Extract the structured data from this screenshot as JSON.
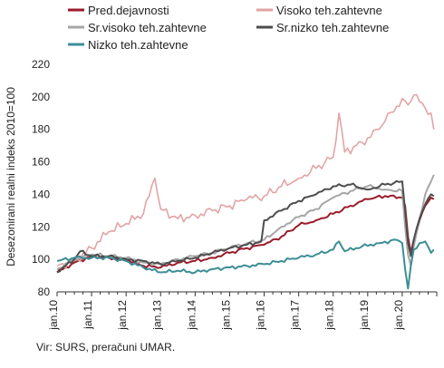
{
  "chart_data": {
    "type": "line",
    "ylabel": "Desezonirani realni indeks 2010=100",
    "ylim": [
      80,
      220
    ],
    "yticks": [
      80,
      100,
      120,
      140,
      160,
      180,
      200,
      220
    ],
    "xticks": [
      "jan.10",
      "jan.11",
      "jan.12",
      "jan.13",
      "jan.14",
      "jan.15",
      "jan.16",
      "jan.17",
      "jan.18",
      "jan.19",
      "jan.20"
    ],
    "xlim_months": [
      0,
      132
    ],
    "grid": false,
    "legend_position": "top",
    "source": "Vir: SURS, preračuni UMAR.",
    "series": [
      {
        "name": "Pred.dejavnosti",
        "color": "#9b1b2b",
        "anchors": [
          [
            0,
            92
          ],
          [
            6,
            98
          ],
          [
            12,
            102
          ],
          [
            18,
            101
          ],
          [
            24,
            100
          ],
          [
            30,
            96
          ],
          [
            36,
            95
          ],
          [
            42,
            98
          ],
          [
            48,
            99
          ],
          [
            54,
            101
          ],
          [
            60,
            104
          ],
          [
            66,
            107
          ],
          [
            72,
            109
          ],
          [
            78,
            114
          ],
          [
            84,
            121
          ],
          [
            90,
            124
          ],
          [
            96,
            128
          ],
          [
            102,
            133
          ],
          [
            108,
            137
          ],
          [
            114,
            139
          ],
          [
            120,
            138
          ],
          [
            121,
            133
          ],
          [
            122,
            114
          ],
          [
            123,
            104
          ],
          [
            124,
            112
          ],
          [
            126,
            124
          ],
          [
            128,
            133
          ],
          [
            130,
            138
          ],
          [
            131,
            137
          ]
        ]
      },
      {
        "name": "Visoko teh.zahtevne",
        "color": "#e2a4a5",
        "anchors": [
          [
            0,
            96
          ],
          [
            6,
            99
          ],
          [
            12,
            107
          ],
          [
            18,
            117
          ],
          [
            24,
            122
          ],
          [
            30,
            128
          ],
          [
            34,
            150
          ],
          [
            36,
            131
          ],
          [
            42,
            125
          ],
          [
            48,
            127
          ],
          [
            54,
            130
          ],
          [
            60,
            133
          ],
          [
            66,
            137
          ],
          [
            72,
            139
          ],
          [
            78,
            145
          ],
          [
            84,
            150
          ],
          [
            90,
            156
          ],
          [
            96,
            163
          ],
          [
            98,
            190
          ],
          [
            100,
            166
          ],
          [
            106,
            172
          ],
          [
            112,
            180
          ],
          [
            114,
            185
          ],
          [
            118,
            194
          ],
          [
            120,
            199
          ],
          [
            122,
            195
          ],
          [
            124,
            201
          ],
          [
            126,
            197
          ],
          [
            128,
            193
          ],
          [
            130,
            190
          ],
          [
            131,
            180
          ]
        ]
      },
      {
        "name": "Sr.visoko teh.zahtevne",
        "color": "#a6a6a6",
        "anchors": [
          [
            0,
            94
          ],
          [
            6,
            100
          ],
          [
            12,
            103
          ],
          [
            18,
            102
          ],
          [
            24,
            101
          ],
          [
            30,
            98
          ],
          [
            36,
            97
          ],
          [
            42,
            100
          ],
          [
            48,
            102
          ],
          [
            54,
            104
          ],
          [
            60,
            107
          ],
          [
            66,
            110
          ],
          [
            72,
            112
          ],
          [
            78,
            120
          ],
          [
            84,
            126
          ],
          [
            90,
            131
          ],
          [
            96,
            138
          ],
          [
            102,
            142
          ],
          [
            108,
            145
          ],
          [
            114,
            143
          ],
          [
            120,
            142
          ],
          [
            121,
            120
          ],
          [
            122,
            103
          ],
          [
            123,
            96
          ],
          [
            124,
            108
          ],
          [
            126,
            125
          ],
          [
            128,
            140
          ],
          [
            130,
            148
          ],
          [
            131,
            152
          ]
        ]
      },
      {
        "name": "Sr.nizko teh.zahtevne",
        "color": "#4d4d4d",
        "anchors": [
          [
            0,
            92
          ],
          [
            6,
            100
          ],
          [
            8,
            105
          ],
          [
            12,
            102
          ],
          [
            18,
            102
          ],
          [
            24,
            100
          ],
          [
            30,
            99
          ],
          [
            36,
            97
          ],
          [
            42,
            99
          ],
          [
            48,
            101
          ],
          [
            54,
            104
          ],
          [
            60,
            107
          ],
          [
            66,
            109
          ],
          [
            71,
            111
          ],
          [
            72,
            124
          ],
          [
            78,
            130
          ],
          [
            84,
            136
          ],
          [
            90,
            140
          ],
          [
            96,
            145
          ],
          [
            102,
            146
          ],
          [
            108,
            143
          ],
          [
            114,
            146
          ],
          [
            120,
            148
          ],
          [
            121,
            130
          ],
          [
            122,
            110
          ],
          [
            123,
            102
          ],
          [
            124,
            112
          ],
          [
            126,
            125
          ],
          [
            128,
            134
          ],
          [
            130,
            140
          ],
          [
            131,
            139
          ]
        ]
      },
      {
        "name": "Nizko teh.zahtevne",
        "color": "#3c8e95",
        "anchors": [
          [
            0,
            99
          ],
          [
            6,
            101
          ],
          [
            12,
            101
          ],
          [
            18,
            101
          ],
          [
            24,
            99
          ],
          [
            30,
            95
          ],
          [
            36,
            92
          ],
          [
            42,
            93
          ],
          [
            48,
            92
          ],
          [
            54,
            94
          ],
          [
            60,
            95
          ],
          [
            66,
            96
          ],
          [
            72,
            97
          ],
          [
            78,
            99
          ],
          [
            84,
            101
          ],
          [
            90,
            103
          ],
          [
            96,
            106
          ],
          [
            98,
            111
          ],
          [
            100,
            105
          ],
          [
            106,
            108
          ],
          [
            112,
            110
          ],
          [
            118,
            112
          ],
          [
            120,
            110
          ],
          [
            121,
            94
          ],
          [
            122,
            82
          ],
          [
            123,
            96
          ],
          [
            124,
            106
          ],
          [
            126,
            110
          ],
          [
            128,
            111
          ],
          [
            130,
            104
          ],
          [
            131,
            106
          ]
        ]
      }
    ]
  }
}
